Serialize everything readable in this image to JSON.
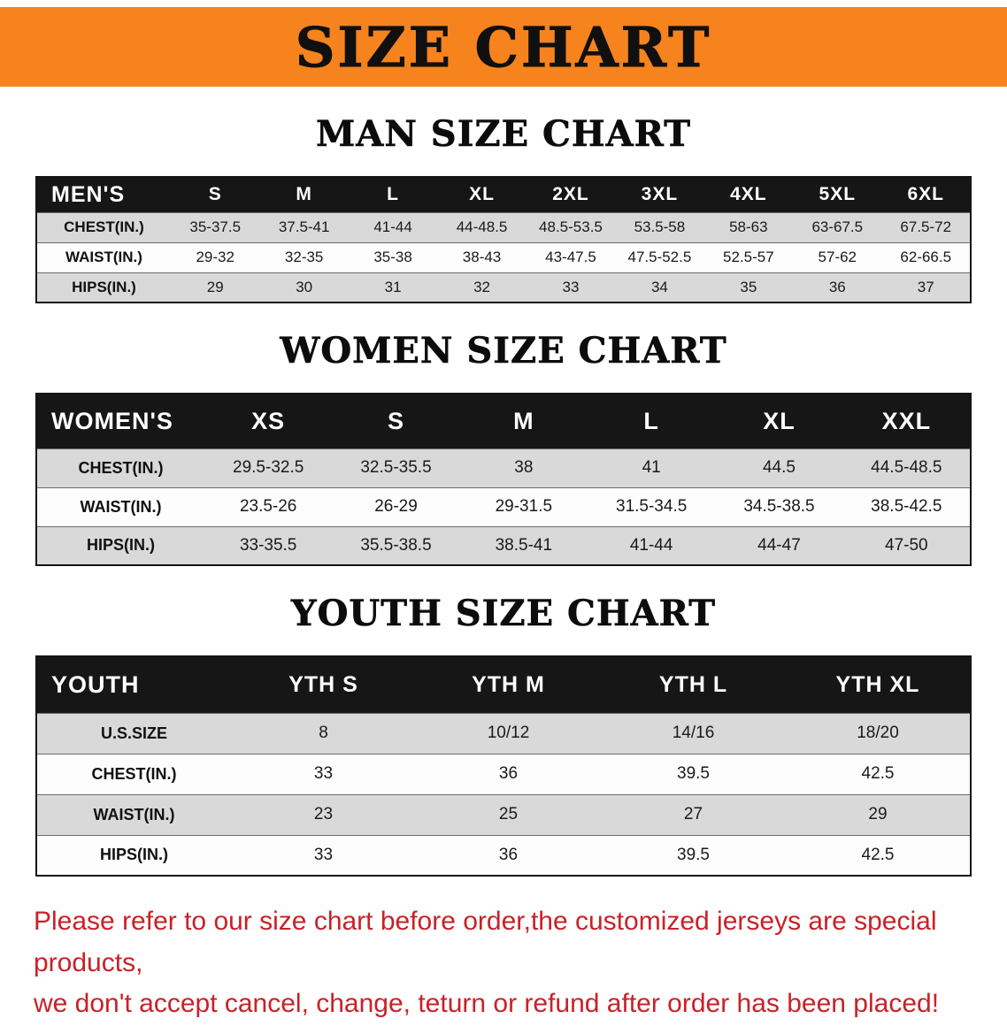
{
  "banner": {
    "title": "SIZE CHART",
    "bg_color": "#f6831d",
    "text_color": "#101010"
  },
  "sections": [
    {
      "id": "men",
      "heading": "MAN SIZE CHART",
      "table": {
        "header_label": "MEN'S",
        "columns": [
          "S",
          "M",
          "L",
          "XL",
          "2XL",
          "3XL",
          "4XL",
          "5XL",
          "6XL"
        ],
        "rows": [
          {
            "label": "CHEST(IN.)",
            "values": [
              "35-37.5",
              "37.5-41",
              "41-44",
              "44-48.5",
              "48.5-53.5",
              "53.5-58",
              "58-63",
              "63-67.5",
              "67.5-72"
            ]
          },
          {
            "label": "WAIST(IN.)",
            "values": [
              "29-32",
              "32-35",
              "35-38",
              "38-43",
              "43-47.5",
              "47.5-52.5",
              "52.5-57",
              "57-62",
              "62-66.5"
            ]
          },
          {
            "label": "HIPS(IN.)",
            "values": [
              "29",
              "30",
              "31",
              "32",
              "33",
              "34",
              "35",
              "36",
              "37"
            ]
          }
        ]
      }
    },
    {
      "id": "women",
      "heading": "WOMEN SIZE CHART",
      "table": {
        "header_label": "WOMEN'S",
        "columns": [
          "XS",
          "S",
          "M",
          "L",
          "XL",
          "XXL"
        ],
        "rows": [
          {
            "label": "CHEST(IN.)",
            "values": [
              "29.5-32.5",
              "32.5-35.5",
              "38",
              "41",
              "44.5",
              "44.5-48.5"
            ]
          },
          {
            "label": "WAIST(IN.)",
            "values": [
              "23.5-26",
              "26-29",
              "29-31.5",
              "31.5-34.5",
              "34.5-38.5",
              "38.5-42.5"
            ]
          },
          {
            "label": "HIPS(IN.)",
            "values": [
              "33-35.5",
              "35.5-38.5",
              "38.5-41",
              "41-44",
              "44-47",
              "47-50"
            ]
          }
        ]
      }
    },
    {
      "id": "youth",
      "heading": "YOUTH SIZE CHART",
      "table": {
        "header_label": "YOUTH",
        "columns": [
          "YTH S",
          "YTH M",
          "YTH L",
          "YTH XL"
        ],
        "rows": [
          {
            "label": "U.S.SIZE",
            "values": [
              "8",
              "10/12",
              "14/16",
              "18/20"
            ]
          },
          {
            "label": "CHEST(IN.)",
            "values": [
              "33",
              "36",
              "39.5",
              "42.5"
            ]
          },
          {
            "label": "WAIST(IN.)",
            "values": [
              "23",
              "25",
              "27",
              "29"
            ]
          },
          {
            "label": "HIPS(IN.)",
            "values": [
              "33",
              "36",
              "39.5",
              "42.5"
            ]
          }
        ]
      }
    }
  ],
  "footer": {
    "line1": "Please refer to our size chart before order,the customized jerseys are special products,",
    "line2": "we don't accept cancel, change, teturn or refund after order has been placed!",
    "text_color": "#c92128"
  }
}
